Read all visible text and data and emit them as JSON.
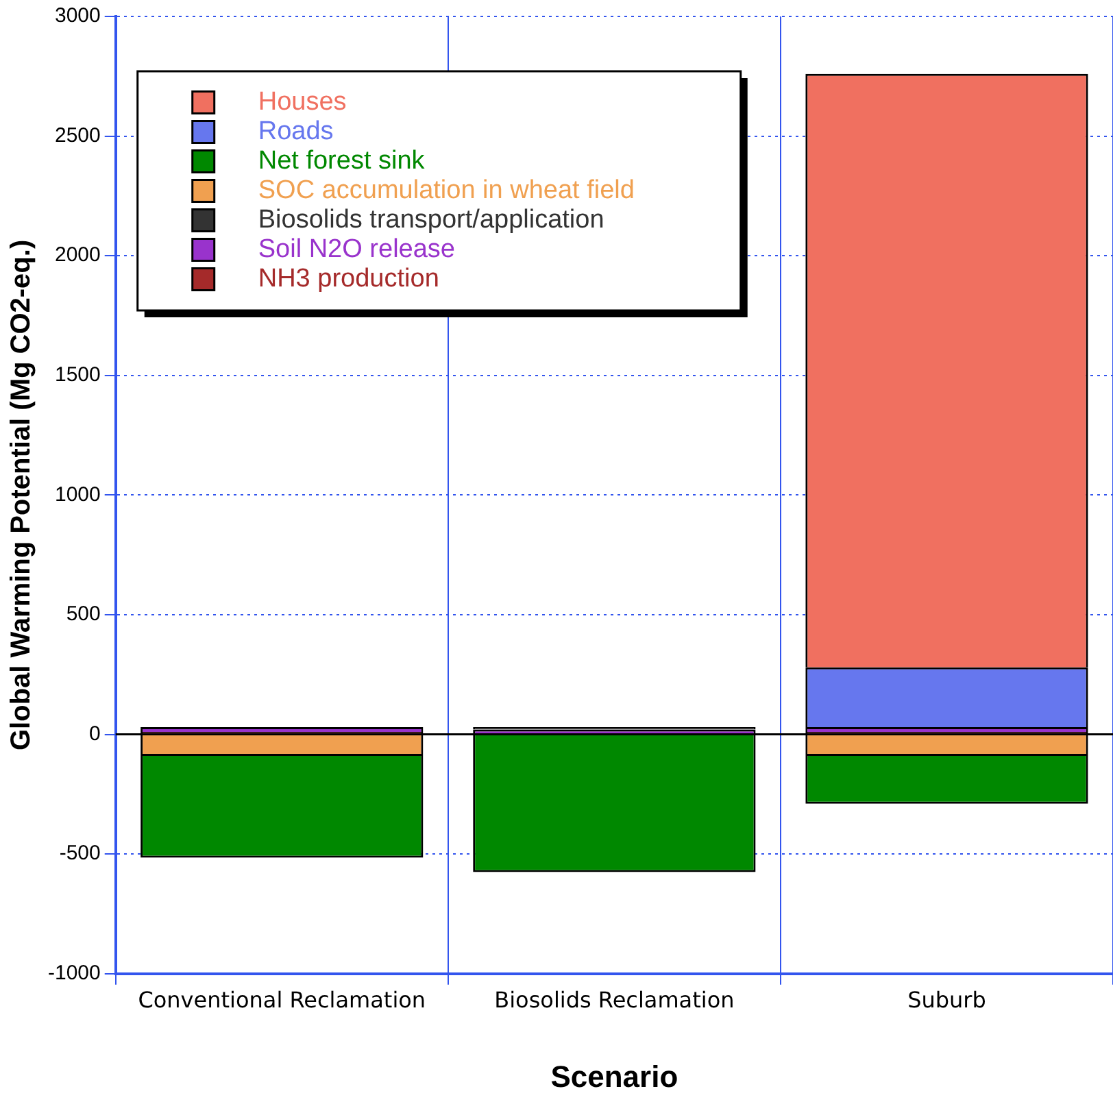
{
  "chart_data": {
    "type": "bar",
    "stacked": true,
    "xlabel": "Scenario",
    "ylabel": "Global Warming Potential (Mg CO2-eq.)",
    "categories": [
      "Conventional Reclamation",
      "Biosolids Reclamation",
      "Suburb"
    ],
    "series": [
      {
        "name": "NH3 production",
        "color": "#a52a2a",
        "values": [
          10,
          null,
          10
        ]
      },
      {
        "name": "Soil N2O release",
        "color": "#9933cc",
        "values": [
          20,
          20,
          20
        ]
      },
      {
        "name": "Biosolids transport/application",
        "color": "#333333",
        "values": [
          null,
          10,
          null
        ]
      },
      {
        "name": "SOC accumulation in wheat field",
        "color": "#f0a050",
        "values": [
          -90,
          null,
          -90
        ]
      },
      {
        "name": "Net forest sink",
        "color": "#008800",
        "values": [
          -425,
          -575,
          -200
        ]
      },
      {
        "name": "Roads",
        "color": "#6677ee",
        "values": [
          null,
          null,
          250
        ]
      },
      {
        "name": "Houses",
        "color": "#f07060",
        "values": [
          null,
          null,
          2480
        ]
      }
    ],
    "ref_lines": [
      {
        "axis": "y",
        "value": 0,
        "color": "#000000"
      }
    ],
    "ylim": [
      -1000,
      3000
    ],
    "yticks": [
      -1000,
      -500,
      0,
      500,
      1000,
      1500,
      2000,
      2500,
      3000
    ],
    "grid": true,
    "legend": "top left"
  }
}
